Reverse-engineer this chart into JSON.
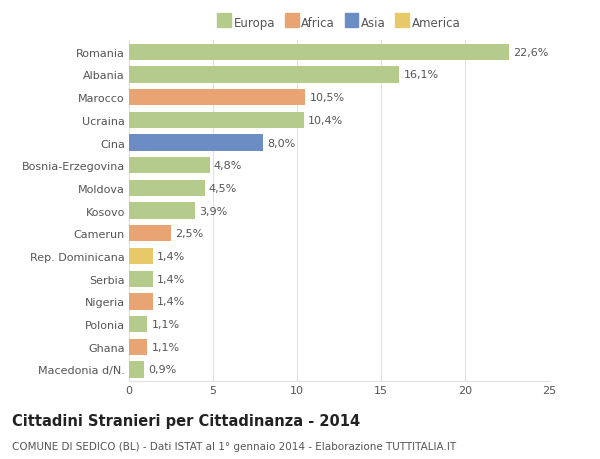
{
  "categories": [
    "Macedonia d/N.",
    "Ghana",
    "Polonia",
    "Nigeria",
    "Serbia",
    "Rep. Dominicana",
    "Camerun",
    "Kosovo",
    "Moldova",
    "Bosnia-Erzegovina",
    "Cina",
    "Ucraina",
    "Marocco",
    "Albania",
    "Romania"
  ],
  "values": [
    0.9,
    1.1,
    1.1,
    1.4,
    1.4,
    1.4,
    2.5,
    3.9,
    4.5,
    4.8,
    8.0,
    10.4,
    10.5,
    16.1,
    22.6
  ],
  "labels": [
    "0,9%",
    "1,1%",
    "1,1%",
    "1,4%",
    "1,4%",
    "1,4%",
    "2,5%",
    "3,9%",
    "4,5%",
    "4,8%",
    "8,0%",
    "10,4%",
    "10,5%",
    "16,1%",
    "22,6%"
  ],
  "colors": [
    "#b5cb8b",
    "#e8a472",
    "#b5cb8b",
    "#e8a472",
    "#b5cb8b",
    "#e8c96a",
    "#e8a472",
    "#b5cb8b",
    "#b5cb8b",
    "#b5cb8b",
    "#6b8dc4",
    "#b5cb8b",
    "#e8a472",
    "#b5cb8b",
    "#b5cb8b"
  ],
  "legend_labels": [
    "Europa",
    "Africa",
    "Asia",
    "America"
  ],
  "legend_colors": [
    "#b5cb8b",
    "#e8a472",
    "#6b8dc4",
    "#e8c96a"
  ],
  "title": "Cittadini Stranieri per Cittadinanza - 2014",
  "subtitle": "COMUNE DI SEDICO (BL) - Dati ISTAT al 1° gennaio 2014 - Elaborazione TUTTITALIA.IT",
  "xlim": [
    0,
    25
  ],
  "xticks": [
    0,
    5,
    10,
    15,
    20,
    25
  ],
  "bar_height": 0.72,
  "background_color": "#ffffff",
  "plot_bg_color": "#ffffff",
  "grid_color": "#e0e0e0",
  "text_color": "#555555",
  "label_fontsize": 8.0,
  "tick_fontsize": 8.0,
  "title_fontsize": 10.5,
  "subtitle_fontsize": 7.5
}
